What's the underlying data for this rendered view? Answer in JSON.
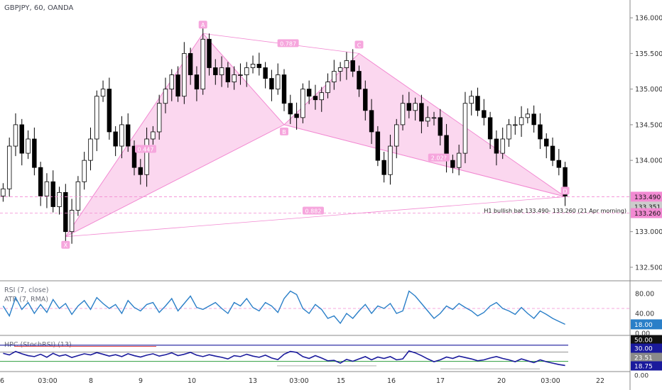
{
  "symbol_title": "GBPJPY, 60, OANDA",
  "colors": {
    "candle": "#000000",
    "pattern_fill": "#f9c9ea",
    "pattern_line": "#f28ad2",
    "rsi_line": "#2a7fc8",
    "hpc_line": "#1a1a9c",
    "hpc_top": "#1a1a9c",
    "green_level": "#2e9e3e",
    "red_level": "#e24b4b",
    "grey_level": "#bdbdbd"
  },
  "chart_data": {
    "type": "candlestick",
    "price_axis": {
      "ticks": [
        "136.000",
        "135.500",
        "135.000",
        "134.500",
        "134.000",
        "133.000",
        "132.500"
      ],
      "range": [
        132.35,
        136.25
      ]
    },
    "x_axis": {
      "ticks": [
        "6",
        "03:00",
        "8",
        "9",
        "10",
        "13",
        "03:00",
        "15",
        "16",
        "17",
        "20",
        "03:00",
        "22"
      ]
    },
    "price_tags": [
      {
        "label": "133.490",
        "value": 133.49,
        "color": "#f28ad2"
      },
      {
        "label": "133.351",
        "value": 133.351,
        "color": "#cccccc"
      },
      {
        "label": "133.260",
        "value": 133.26,
        "color": "#f28ad2"
      }
    ],
    "pattern": {
      "name": "bullish bat",
      "points": [
        {
          "label": "X",
          "value": 132.93
        },
        {
          "label": "A",
          "value": 135.78
        },
        {
          "label": "B",
          "value": 134.5
        },
        {
          "label": "C",
          "value": 135.5
        },
        {
          "label": "D",
          "value": 133.49
        }
      ],
      "ratios": [
        "0.447",
        "0.787",
        "2.02?",
        "0.882"
      ]
    },
    "annotation": "H1 bullish bat 133.490- 133.260 (21 Apr morning)",
    "close_series": [
      133.6,
      134.2,
      134.5,
      134.1,
      134.3,
      133.9,
      133.5,
      133.7,
      133.35,
      133.55,
      133.0,
      133.3,
      133.7,
      134.0,
      134.3,
      134.9,
      135.0,
      134.4,
      134.2,
      134.5,
      134.2,
      133.9,
      133.8,
      134.3,
      134.4,
      134.8,
      135.0,
      135.2,
      134.9,
      135.5,
      135.2,
      135.0,
      135.7,
      135.3,
      135.2,
      135.3,
      135.1,
      135.2,
      135.2,
      135.3,
      135.35,
      135.3,
      135.15,
      135.0,
      135.2,
      134.8,
      134.65,
      134.6,
      135.0,
      134.9,
      134.85,
      134.95,
      135.1,
      135.25,
      135.3,
      135.4,
      135.25,
      135.0,
      134.7,
      134.4,
      134.0,
      133.8,
      134.2,
      134.5,
      134.8,
      134.7,
      134.8,
      134.55,
      134.6,
      134.6,
      134.35,
      134.0,
      133.9,
      134.1,
      134.8,
      134.9,
      134.7,
      134.6,
      134.3,
      134.1,
      134.3,
      134.5,
      134.5,
      134.6,
      134.65,
      134.5,
      134.3,
      134.2,
      134.0,
      133.9,
      133.5
    ],
    "rsi": {
      "label": "RSI (7, close)",
      "sublabel": "ATR (7, RMA)",
      "ticks": [
        "80.00",
        "40.00",
        "0.00"
      ],
      "last_label": "18.00",
      "level": 50,
      "values": [
        55,
        35,
        72,
        48,
        62,
        40,
        58,
        42,
        68,
        50,
        60,
        38,
        55,
        66,
        48,
        72,
        60,
        50,
        58,
        40,
        66,
        52,
        45,
        58,
        62,
        42,
        55,
        70,
        45,
        60,
        75,
        52,
        48,
        55,
        62,
        50,
        40,
        62,
        55,
        70,
        52,
        45,
        62,
        55,
        42,
        70,
        85,
        78,
        50,
        40,
        58,
        48,
        30,
        35,
        20,
        40,
        30,
        45,
        58,
        40,
        55,
        50,
        60,
        40,
        45,
        85,
        75,
        60,
        45,
        30,
        40,
        55,
        48,
        60,
        52,
        45,
        35,
        42,
        55,
        62,
        50,
        45,
        38,
        52,
        40,
        30,
        45,
        38,
        30,
        24,
        18
      ]
    },
    "hpc": {
      "label": "HPC (StochRSI) (13)",
      "ticks": [
        "50.00",
        "30.00",
        "23.51",
        "18.75",
        "0.00"
      ],
      "values": [
        72,
        65,
        80,
        70,
        62,
        58,
        68,
        55,
        72,
        60,
        66,
        54,
        62,
        70,
        65,
        75,
        68,
        60,
        66,
        58,
        70,
        62,
        56,
        64,
        70,
        60,
        66,
        74,
        62,
        68,
        76,
        64,
        58,
        66,
        60,
        55,
        48,
        62,
        58,
        68,
        60,
        55,
        64,
        52,
        45,
        68,
        80,
        76,
        58,
        50,
        62,
        52,
        40,
        42,
        30,
        46,
        38,
        48,
        58,
        44,
        56,
        50,
        58,
        44,
        48,
        82,
        74,
        62,
        48,
        36,
        44,
        56,
        50,
        60,
        54,
        48,
        40,
        44,
        52,
        58,
        50,
        44,
        36,
        48,
        40,
        32,
        44,
        36,
        30,
        24,
        20
      ]
    }
  }
}
